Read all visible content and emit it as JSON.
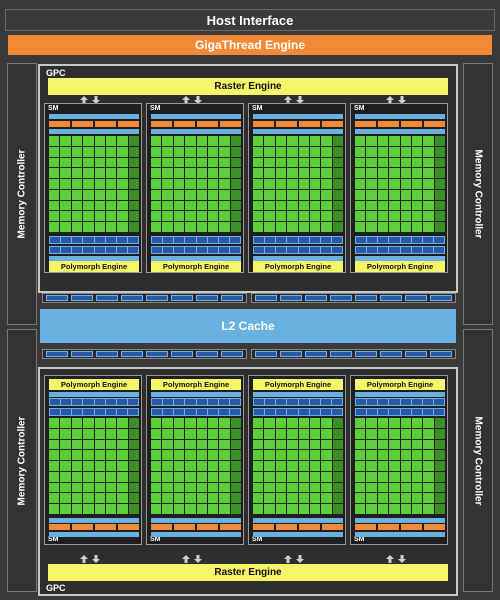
{
  "host_interface": "Host Interface",
  "gigathread_engine": "GigaThread Engine",
  "memory_controller": "Memory Controller",
  "l2_cache": "L2 Cache",
  "gpc_label": "GPC",
  "raster_engine": "Raster Engine",
  "sm_label": "SM",
  "polymorph_engine": "Polymorph Engine",
  "colors": {
    "background": "#3a3a3a",
    "gigathread": "#f28a37",
    "raster": "#f5f56a",
    "cache_blue": "#6ab0e0",
    "core_green": "#5ccf3a",
    "dark_blue": "#2a58a8"
  }
}
